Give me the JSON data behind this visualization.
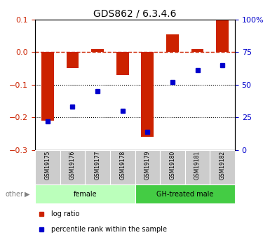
{
  "title": "GDS862 / 6.3.4.6",
  "samples": [
    "GSM19175",
    "GSM19176",
    "GSM19177",
    "GSM19178",
    "GSM19179",
    "GSM19180",
    "GSM19181",
    "GSM19182"
  ],
  "log_ratio": [
    -0.21,
    -0.05,
    0.01,
    -0.07,
    -0.26,
    0.055,
    0.01,
    0.1
  ],
  "percentile_rank": [
    22,
    33,
    45,
    30,
    14,
    52,
    61,
    65
  ],
  "ylim_left": [
    -0.3,
    0.1
  ],
  "ylim_right": [
    0,
    100
  ],
  "yticks_left": [
    -0.3,
    -0.2,
    -0.1,
    0.0,
    0.1
  ],
  "yticks_right": [
    0,
    25,
    50,
    75,
    100
  ],
  "groups": [
    {
      "label": "female",
      "indices": [
        0,
        1,
        2,
        3
      ],
      "color": "#bbffbb"
    },
    {
      "label": "GH-treated male",
      "indices": [
        4,
        5,
        6,
        7
      ],
      "color": "#44cc44"
    }
  ],
  "bar_color": "#cc2200",
  "dot_color": "#0000cc",
  "dashed_color": "#cc2200",
  "bar_width": 0.5,
  "legend_items": [
    {
      "label": "log ratio",
      "color": "#cc2200"
    },
    {
      "label": "percentile rank within the sample",
      "color": "#0000cc"
    }
  ],
  "sample_box_color": "#cccccc",
  "other_label": "other",
  "hline_dotted": [
    -0.1,
    -0.2
  ],
  "right_tick_labels": [
    "0",
    "25",
    "50",
    "75",
    "100%"
  ]
}
